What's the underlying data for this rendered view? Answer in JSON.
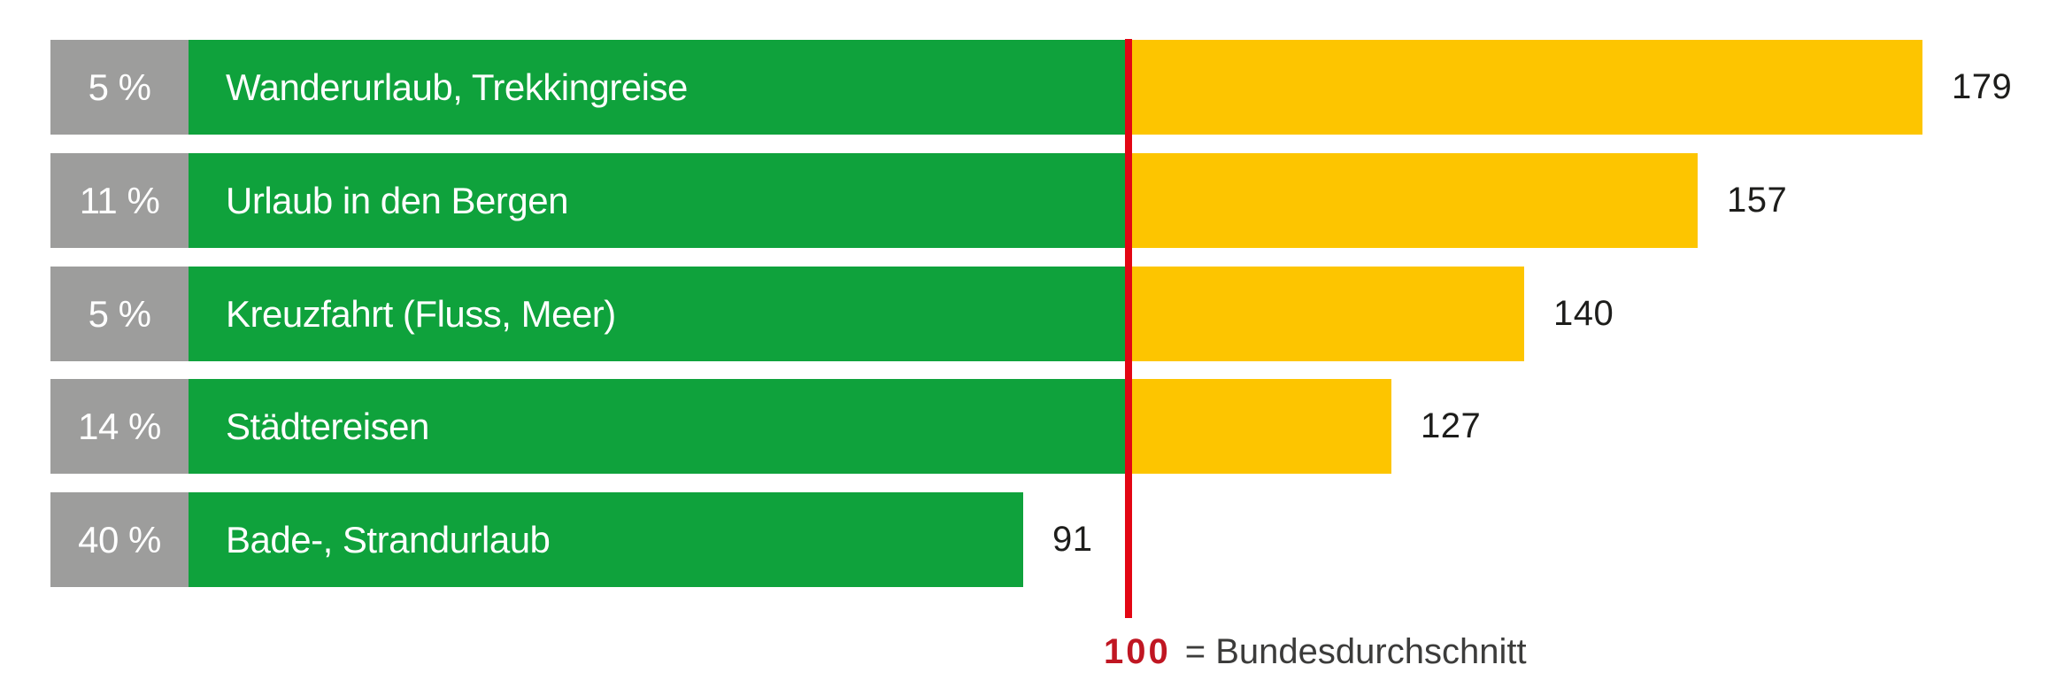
{
  "chart_data": {
    "type": "bar",
    "orientation": "horizontal",
    "rows": [
      {
        "percent": "5 %",
        "label": "Wanderurlaub, Trekkingreise",
        "value": 179
      },
      {
        "percent": "11 %",
        "label": "Urlaub in den Bergen",
        "value": 157
      },
      {
        "percent": "5 %",
        "label": "Kreuzfahrt (Fluss, Meer)",
        "value": 140
      },
      {
        "percent": "14 %",
        "label": "Städtereisen",
        "value": 127
      },
      {
        "percent": "40 %",
        "label": "Bade-, Strandurlaub",
        "value": 91
      }
    ],
    "reference_line": {
      "value": 100,
      "label_value": "100",
      "label_text": "= Bundesdurchschnitt"
    },
    "xlim": [
      0,
      192
    ],
    "legend_position": "bottom-center",
    "grid": false,
    "colors": {
      "green": "#0fa23c",
      "yellow": "#fdc500",
      "gray": "#9d9d9c",
      "red_line": "#e30613",
      "red_text": "#c01622",
      "value_text": "#1d1d1b",
      "legend_text": "#3c3c3b",
      "bar_label_text": "#ffffff"
    }
  }
}
